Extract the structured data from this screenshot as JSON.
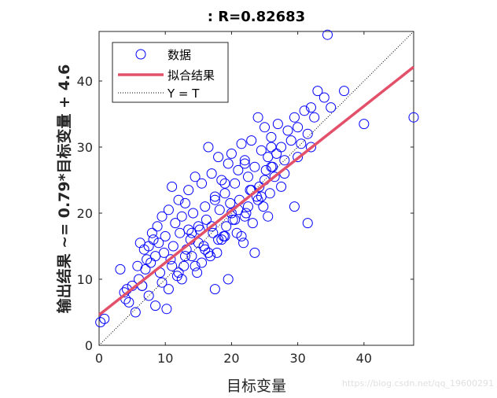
{
  "chart_data": {
    "type": "scatter",
    "title": ": R=0.82683",
    "xlabel": "目标变量",
    "ylabel": "输出结果 ~= 0.79*目标变量 + 4.6",
    "xlim": [
      0,
      47.5
    ],
    "ylim": [
      0,
      47.5
    ],
    "x_ticks": [
      0,
      10,
      20,
      30,
      40
    ],
    "y_ticks": [
      0,
      10,
      20,
      30,
      40
    ],
    "grid": false,
    "legend_position": "top-left",
    "fit": {
      "slope": 0.79,
      "intercept": 4.6
    },
    "series": [
      {
        "name": "数据",
        "marker": "open-circle",
        "color": "#0000ff",
        "x": [
          0.2,
          0.8,
          3.2,
          3.8,
          4.0,
          4.2,
          4.5,
          5.0,
          5.5,
          5.8,
          6.0,
          6.2,
          6.5,
          6.8,
          7.0,
          7.2,
          7.5,
          7.8,
          8.0,
          8.2,
          8.5,
          8.8,
          9.0,
          9.2,
          9.5,
          9.8,
          10.0,
          10.2,
          10.5,
          10.8,
          11.0,
          11.2,
          11.5,
          11.8,
          12.0,
          12.2,
          12.5,
          12.8,
          13.0,
          13.2,
          13.5,
          13.8,
          14.0,
          14.2,
          14.5,
          14.8,
          15.0,
          15.2,
          15.5,
          15.8,
          16.0,
          16.2,
          16.5,
          16.8,
          17.0,
          17.2,
          17.5,
          17.8,
          18.0,
          18.2,
          18.5,
          18.8,
          19.0,
          19.2,
          19.5,
          19.8,
          20.0,
          20.2,
          20.5,
          20.8,
          21.0,
          21.2,
          21.5,
          21.8,
          22.0,
          22.2,
          22.5,
          22.8,
          23.0,
          23.2,
          23.5,
          23.8,
          24.0,
          24.2,
          24.5,
          24.8,
          25.0,
          25.2,
          25.5,
          25.8,
          26.0,
          26.2,
          26.5,
          26.8,
          27.0,
          27.5,
          28.0,
          28.5,
          29.0,
          29.5,
          30.0,
          30.5,
          31.0,
          31.5,
          32.0,
          32.5,
          33.0,
          34.0,
          34.5,
          35.0,
          37.0,
          40.0,
          47.5,
          9.5,
          12.5,
          15.5,
          17.5,
          19.5,
          21.5,
          23.5,
          25.5,
          27.5,
          29.5,
          31.5,
          14.0,
          16.0,
          18.0,
          20.0,
          22.0,
          24.0,
          26.0,
          28.0,
          30.0,
          32.0,
          11.0,
          13.0,
          15.0,
          17.0,
          19.0,
          21.0,
          23.0,
          25.0,
          10.5,
          12.0,
          14.5,
          16.5,
          18.5,
          20.5,
          22.5,
          24.5,
          8.5,
          7.5,
          6.5,
          13.5,
          17.5,
          19.0,
          22.0,
          26.0
        ],
        "y": [
          3.5,
          4.0,
          11.5,
          8.0,
          7.0,
          8.5,
          6.5,
          9.0,
          5.0,
          12.0,
          10.0,
          15.5,
          9.0,
          14.5,
          11.5,
          13.0,
          15.0,
          12.5,
          17.0,
          16.0,
          13.5,
          18.0,
          15.5,
          11.0,
          19.5,
          14.0,
          16.5,
          5.5,
          20.5,
          13.0,
          24.0,
          15.0,
          18.5,
          10.5,
          22.0,
          17.0,
          19.5,
          12.0,
          21.5,
          14.5,
          23.5,
          16.0,
          13.5,
          20.0,
          25.5,
          11.0,
          18.0,
          17.5,
          24.5,
          15.0,
          21.0,
          19.0,
          30.0,
          13.5,
          26.0,
          17.0,
          22.5,
          14.0,
          28.5,
          20.5,
          25.0,
          16.5,
          23.0,
          18.0,
          27.5,
          21.5,
          29.0,
          19.0,
          24.5,
          17.0,
          26.5,
          22.0,
          30.5,
          15.5,
          28.0,
          20.0,
          25.5,
          23.5,
          31.0,
          18.5,
          27.0,
          22.5,
          34.5,
          24.0,
          29.5,
          21.0,
          33.0,
          26.5,
          28.5,
          23.0,
          31.5,
          27.0,
          25.5,
          29.0,
          33.5,
          30.0,
          28.0,
          32.5,
          31.0,
          34.5,
          33.0,
          30.5,
          35.5,
          32.0,
          36.0,
          34.5,
          38.5,
          37.5,
          47.0,
          36.0,
          38.5,
          33.5,
          34.5,
          9.5,
          10.0,
          12.5,
          8.5,
          10.0,
          16.5,
          14.0,
          19.5,
          24.0,
          21.0,
          18.5,
          17.0,
          14.5,
          16.0,
          20.0,
          19.5,
          22.0,
          27.0,
          26.0,
          28.5,
          30.0,
          12.0,
          13.5,
          15.5,
          18.0,
          16.5,
          20.5,
          23.5,
          25.0,
          8.5,
          11.0,
          12.0,
          14.0,
          16.0,
          19.0,
          21.0,
          22.5,
          6.0,
          7.5,
          9.0,
          17.5,
          22.0,
          24.5,
          27.5,
          30.0
        ]
      }
    ],
    "legend": {
      "data": "数据",
      "fit": "拟合结果",
      "yt": "Y = T"
    },
    "colors": {
      "data": "#0000ff",
      "fit": "#e3506a",
      "diag": "#000000",
      "axes": "#262626"
    },
    "watermark": "https://blog.csdn.net/qq_19600291"
  }
}
